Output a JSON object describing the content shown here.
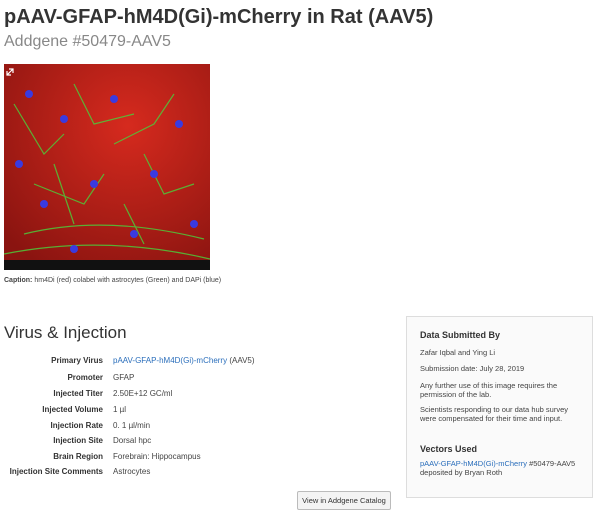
{
  "header": {
    "title": "pAAV-GFAP-hM4D(Gi)-mCherry in Rat (AAV5)",
    "subtitle": "Addgene #50479-AAV5"
  },
  "image": {
    "caption_label": "Caption:",
    "caption": "hm4Di (red) colabel with astrocytes (Green) and DAPi (blue)"
  },
  "section": {
    "title": "Virus & Injection",
    "rows": [
      {
        "label": "Primary Virus",
        "link": "pAAV-GFAP-hM4D(Gi)-mCherry",
        "suffix": "(AAV5)"
      },
      {
        "label": "Promoter",
        "value": "GFAP"
      },
      {
        "label": "Injected Titer",
        "value": "2.50E+12 GC/ml"
      },
      {
        "label": "Injected Volume",
        "value": "1 µl"
      },
      {
        "label": "Injection Rate",
        "value": "0. 1 µl/min"
      },
      {
        "label": "Injection Site",
        "value": "Dorsal hpc"
      },
      {
        "label": "Brain Region",
        "value": "Forebrain: Hippocampus"
      },
      {
        "label": "Injection Site Comments",
        "value": "Astrocytes"
      }
    ],
    "button": "View in Addgene Catalog"
  },
  "sidebar": {
    "title": "Data Submitted By",
    "submitters": "Zafar Iqbal and Ying Li",
    "date": "Submission date: July 28, 2019",
    "notes": [
      "Any further use of this image requires the permission of the lab.",
      "Scientists responding to our data hub survey were compensated for their time and input."
    ],
    "vectors_title": "Vectors Used",
    "vector": {
      "link": "pAAV-GFAP-hM4D(Gi)-mCherry",
      "id": "#50479-AAV5",
      "depositor": "deposited by Bryan Roth"
    }
  }
}
